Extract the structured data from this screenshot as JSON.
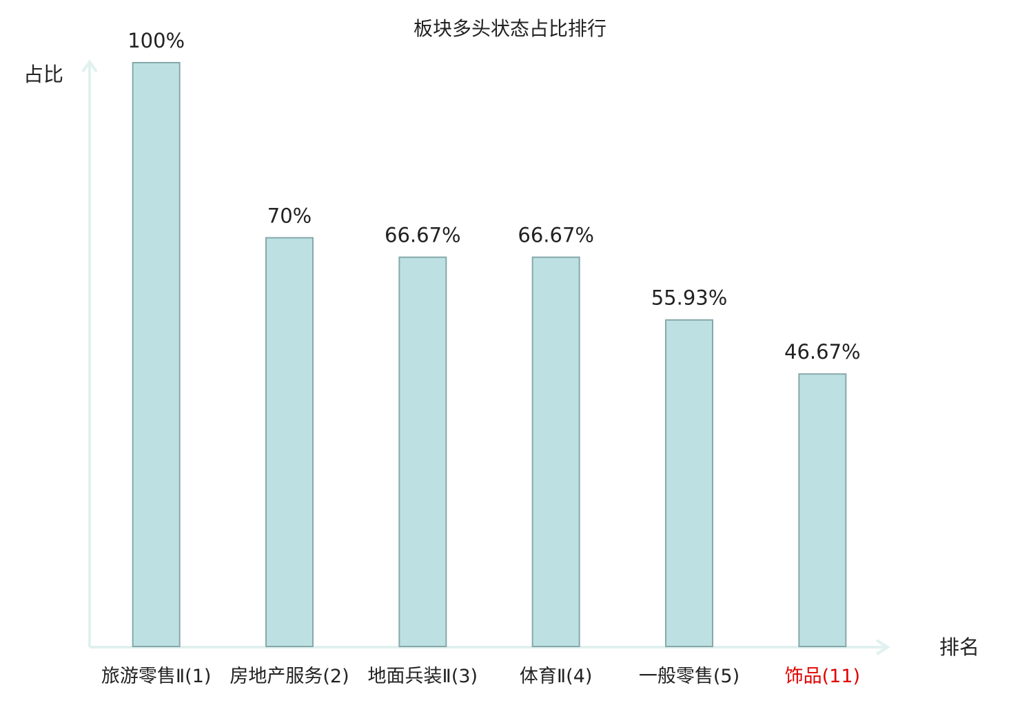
{
  "chart_data": {
    "type": "bar",
    "title": "板块多头状态占比排行",
    "y_label": "占比",
    "x_label": "排名",
    "categories": [
      "旅游零售Ⅱ(1)",
      "房地产服务(2)",
      "地面兵装Ⅱ(3)",
      "体育Ⅱ(4)",
      "一般零售(5)",
      "饰品(11)"
    ],
    "category_colors": [
      "#222222",
      "#222222",
      "#222222",
      "#222222",
      "#222222",
      "#e00000"
    ],
    "values": [
      100,
      70,
      66.67,
      66.67,
      55.93,
      46.67
    ],
    "value_labels": [
      "100%",
      "70%",
      "66.67%",
      "66.67%",
      "55.93%",
      "46.67%"
    ],
    "color": "#bde0e3",
    "edge_color": "#86a8aa",
    "ylim": [
      0,
      100
    ]
  }
}
